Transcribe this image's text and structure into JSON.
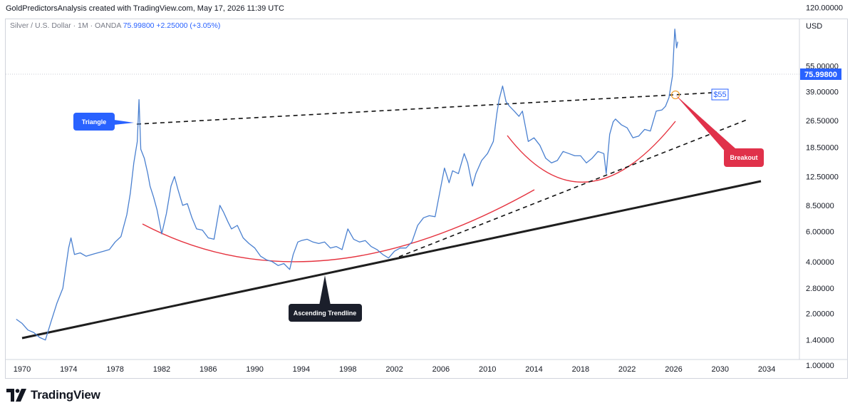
{
  "header": {
    "title": "GoldPredictorsAnalysis created with TradingView.com, May 17, 2026 11:39 UTC"
  },
  "legend": {
    "symbol": "Silver / U.S. Dollar · 1M · OANDA",
    "last": "75.99800",
    "change": "+2.25000 (+3.05%)"
  },
  "footer": {
    "brand": "TradingView"
  },
  "colors": {
    "price": "#4a80d0",
    "curve": "#e5333f",
    "trend": "#1e1e1e",
    "callout_blue": "#2962ff",
    "callout_red": "#e0314a",
    "callout_dark": "#1b1f2b"
  },
  "chart_data": {
    "type": "line",
    "scale": "log",
    "currency_label": "USD",
    "x_ticks": [
      "1970",
      "1974",
      "1978",
      "1982",
      "1986",
      "1990",
      "1994",
      "1998",
      "2002",
      "2006",
      "2010",
      "2014",
      "2018",
      "2022",
      "2026",
      "2030",
      "2034"
    ],
    "y_ticks": [
      "120.00000",
      "55.00000",
      "39.00000",
      "26.50000",
      "18.50000",
      "12.50000",
      "8.50000",
      "6.00000",
      "4.00000",
      "2.80000",
      "2.00000",
      "1.40000",
      "1.00000"
    ],
    "last_price_label": "75.99800",
    "series": [
      {
        "x": [
          1969.5,
          1970,
          1970.5,
          1971,
          1971.5,
          1972,
          1972.5,
          1973,
          1973.5,
          1974,
          1974.2,
          1974.5,
          1975,
          1975.5,
          1976,
          1976.5,
          1977,
          1977.5,
          1978,
          1978.5,
          1979,
          1979.3,
          1979.6,
          1979.9,
          1980.05,
          1980.2,
          1980.5,
          1980.8,
          1981,
          1981.3,
          1981.6,
          1982,
          1982.4,
          1982.8,
          1983.1,
          1983.4,
          1983.8,
          1984.2,
          1984.6,
          1985,
          1985.5,
          1986,
          1986.5,
          1987,
          1987.3,
          1987.7,
          1988,
          1988.5,
          1989,
          1989.5,
          1990,
          1990.5,
          1991,
          1991.5,
          1992,
          1992.5,
          1993,
          1993.3,
          1993.7,
          1994,
          1994.5,
          1995,
          1995.5,
          1996,
          1996.5,
          1997,
          1997.5,
          1998,
          1998.5,
          1999,
          1999.5,
          2000,
          2000.5,
          2001,
          2001.5,
          2002,
          2002.5,
          2003,
          2003.5,
          2004,
          2004.5,
          2005,
          2005.5,
          2006,
          2006.3,
          2006.7,
          2007,
          2007.5,
          2008,
          2008.3,
          2008.7,
          2009,
          2009.5,
          2010,
          2010.5,
          2010.8,
          2011,
          2011.3,
          2011.6,
          2011.9,
          2012.3,
          2012.7,
          2013,
          2013.5,
          2014,
          2014.5,
          2015,
          2015.5,
          2016,
          2016.5,
          2017,
          2017.5,
          2018,
          2018.5,
          2019,
          2019.5,
          2020,
          2020.2,
          2020.5,
          2020.8,
          2021,
          2021.5,
          2022,
          2022.5,
          2023,
          2023.5,
          2024,
          2024.5,
          2025,
          2025.3,
          2025.6,
          2025.9,
          2026.1,
          2026.25,
          2026.35
        ],
        "y": [
          1.85,
          1.75,
          1.6,
          1.55,
          1.45,
          1.4,
          1.8,
          2.3,
          2.8,
          4.8,
          5.5,
          4.4,
          4.5,
          4.3,
          4.4,
          4.5,
          4.6,
          4.7,
          5.2,
          5.6,
          7.5,
          10.0,
          15.0,
          20.0,
          35.0,
          18.0,
          16.0,
          13.0,
          11.0,
          9.5,
          8.0,
          5.8,
          7.6,
          11.0,
          12.5,
          10.5,
          8.5,
          8.7,
          7.2,
          6.2,
          6.1,
          5.5,
          5.4,
          8.5,
          7.8,
          6.8,
          6.2,
          6.5,
          5.5,
          5.1,
          4.8,
          4.3,
          4.1,
          4.0,
          3.8,
          3.9,
          3.6,
          4.4,
          5.2,
          5.3,
          5.4,
          5.2,
          5.1,
          5.2,
          4.8,
          4.9,
          4.7,
          6.2,
          5.4,
          5.2,
          5.3,
          4.9,
          4.7,
          4.4,
          4.2,
          4.6,
          4.8,
          4.8,
          5.2,
          6.5,
          7.2,
          7.4,
          7.3,
          11.0,
          14.0,
          11.5,
          13.5,
          13.0,
          17.0,
          15.0,
          11.0,
          13.0,
          15.5,
          17.0,
          20.0,
          29.0,
          35.0,
          42.0,
          34.0,
          32.0,
          30.0,
          28.0,
          30.0,
          20.0,
          21.0,
          19.0,
          16.0,
          15.0,
          15.5,
          17.5,
          17.0,
          16.5,
          16.5,
          15.0,
          16.0,
          17.5,
          17.0,
          13.0,
          22.0,
          26.0,
          27.0,
          25.0,
          24.0,
          21.0,
          21.5,
          23.5,
          23.0,
          30.0,
          30.5,
          32.0,
          36.0,
          48.0,
          90.0,
          70.0,
          76.0
        ]
      }
    ],
    "annotations": {
      "triangle_label": "Triangle",
      "breakout_label": "Breakout",
      "trendline_label": "Ascending Trendline",
      "level_label": "$55"
    }
  }
}
